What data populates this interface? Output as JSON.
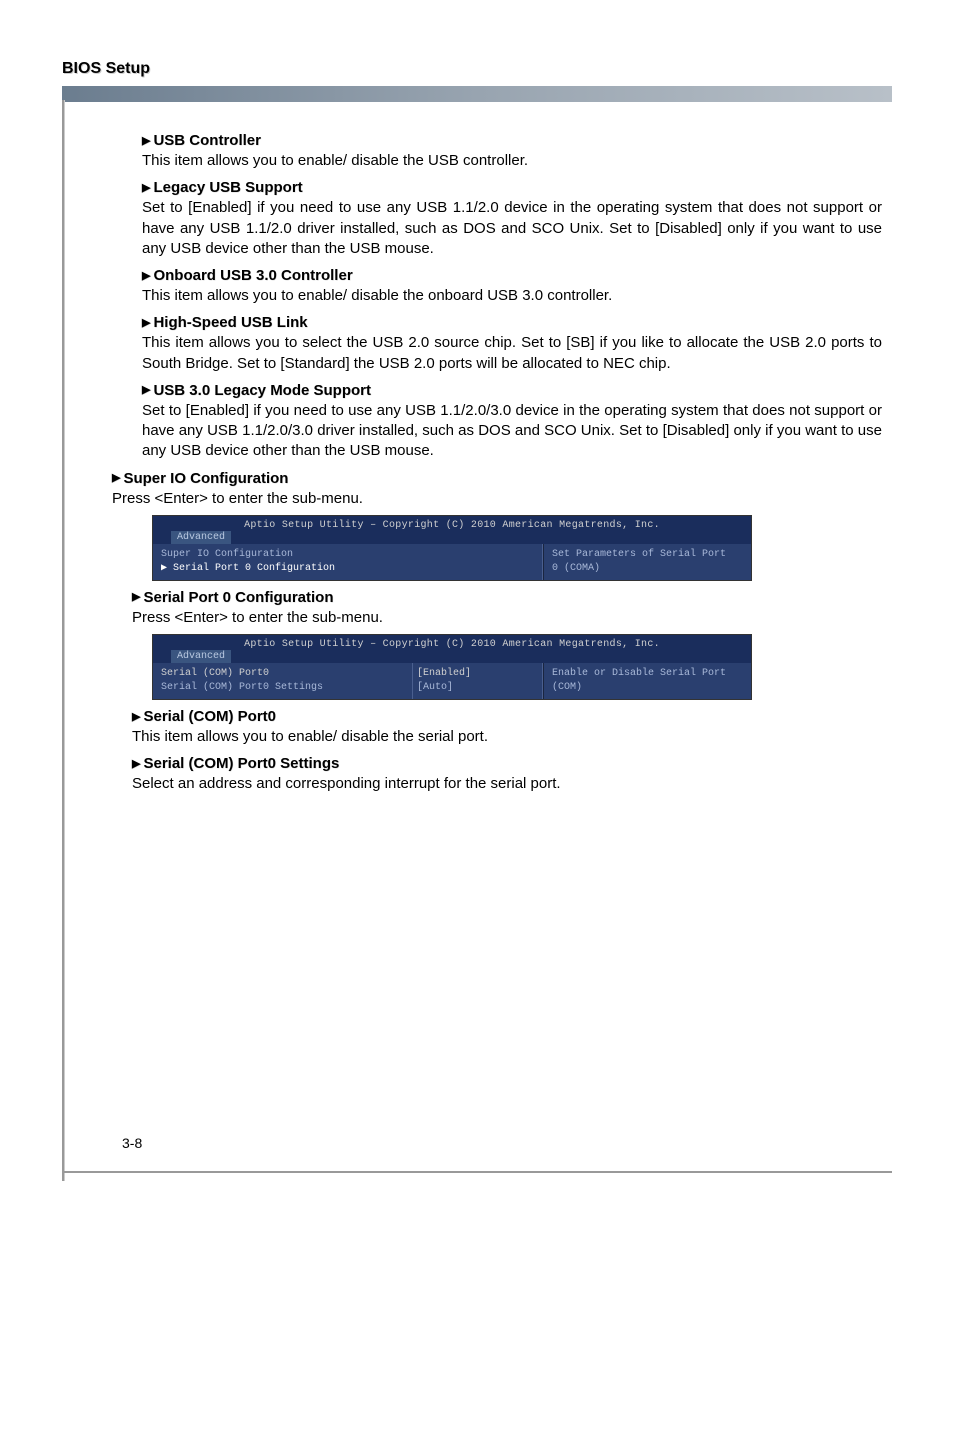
{
  "page": {
    "header": "BIOS Setup",
    "page_number": "3-8"
  },
  "items": [
    {
      "title": "USB Controller",
      "desc": "This item allows you to enable/ disable the USB controller."
    },
    {
      "title": "Legacy USB Support",
      "desc": "Set to [Enabled] if you need to use any USB 1.1/2.0 device in the operating system that does not support or have any USB 1.1/2.0 driver installed, such as DOS and SCO Unix. Set to [Disabled] only if you want to use any USB device other than the USB mouse."
    },
    {
      "title": "Onboard USB 3.0 Controller",
      "desc": "This item allows you to enable/ disable the onboard USB 3.0 controller."
    },
    {
      "title": "High-Speed USB Link",
      "desc": "This item allows you to select the USB 2.0 source chip. Set to [SB] if you like to allocate the USB 2.0 ports to South Bridge. Set to [Standard] the USB 2.0 ports will be allocated to NEC chip."
    },
    {
      "title": "USB 3.0 Legacy Mode Support",
      "desc": "Set to [Enabled] if you need to use any USB 1.1/2.0/3.0 device in the operating system that does not support or have any USB 1.1/2.0/3.0 driver installed, such as DOS and SCO Unix. Set to [Disabled] only if you want to use any USB device other than the USB mouse."
    }
  ],
  "super_io": {
    "title": "Super IO Configuration",
    "desc": "Press <Enter> to enter the sub-menu."
  },
  "screenshot1": {
    "title": "Aptio Setup Utility – Copyright (C) 2010 American Megatrends, Inc.",
    "tab": "Advanced",
    "left_lines": [
      {
        "text": "Super IO Configuration",
        "highlight": false
      },
      {
        "text": "▶ Serial Port 0 Configuration",
        "highlight": true
      }
    ],
    "right_lines": [
      "Set Parameters of Serial Port",
      "0 (COMA)"
    ]
  },
  "serial_port_0": {
    "title": "Serial Port 0 Configuration",
    "desc": "Press <Enter> to enter the sub-menu."
  },
  "screenshot2": {
    "title": "Aptio Setup Utility – Copyright (C) 2010 American Megatrends, Inc.",
    "tab": "Advanced",
    "left_lines": [
      "Serial (COM) Port0",
      "Serial (COM) Port0 Settings"
    ],
    "mid_lines": [
      "[Enabled]",
      "[Auto]"
    ],
    "right_lines": [
      "Enable or Disable Serial Port",
      "(COM)"
    ]
  },
  "serial_com": {
    "title": "Serial (COM) Port0",
    "desc": "This item allows you to enable/ disable the serial port."
  },
  "serial_com_settings": {
    "title": "Serial (COM) Port0 Settings",
    "desc": "Select an address and corresponding interrupt for the serial port."
  },
  "colors": {
    "header_bar_start": "#6b7d8f",
    "bios_title_bg": "#1a2d5c",
    "bios_body_bg": "#2a3f6f",
    "bios_text": "#a8b8d8"
  }
}
